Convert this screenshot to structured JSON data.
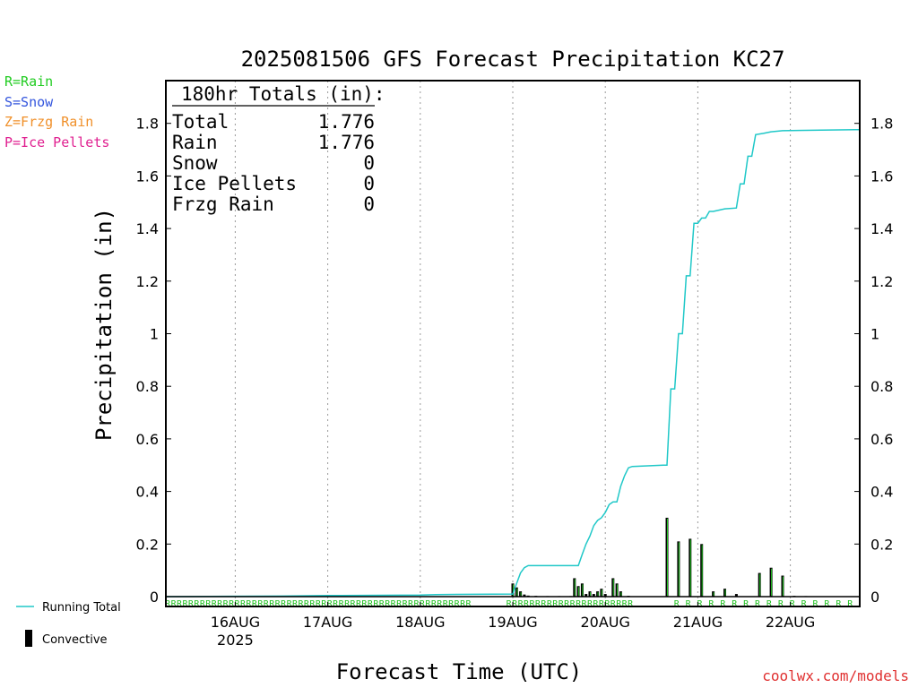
{
  "chart_data": {
    "type": "bar",
    "title": "2025081506 GFS Forecast Precipitation KC27",
    "xlabel": "Forecast Time (UTC)",
    "ylabel": "Precipitation (in)",
    "ylim": [
      0,
      1.95
    ],
    "yticks": [
      0,
      0.2,
      0.4,
      0.6,
      0.8,
      1,
      1.2,
      1.4,
      1.6,
      1.8
    ],
    "ytick_labels": [
      "0",
      "0.2",
      "0.4",
      "0.6",
      "0.8",
      "1",
      "1.2",
      "1.4",
      "1.6",
      "1.8"
    ],
    "xlim_hours": [
      0,
      180
    ],
    "day_hours": [
      18,
      42,
      66,
      90,
      114,
      138,
      162
    ],
    "x_tick_labels": [
      "16AUG",
      "17AUG",
      "18AUG",
      "19AUG",
      "20AUG",
      "21AUG",
      "22AUG"
    ],
    "x_tick_sublabel": "2025",
    "grid": true,
    "legend_position": "left",
    "type_legend": [
      {
        "text": "R=Rain",
        "color": "#22cc22"
      },
      {
        "text": "S=Snow",
        "color": "#3355dd"
      },
      {
        "text": "Z=Frzg Rain",
        "color": "#f0902a"
      },
      {
        "text": "P=Ice Pellets",
        "color": "#e02090"
      }
    ],
    "series_legend": [
      {
        "text": "Running Total",
        "kind": "line",
        "color": "#20c8c8"
      },
      {
        "text": "Convective",
        "kind": "bar",
        "color": "#000000"
      }
    ],
    "totals_box": {
      "header": "180hr Totals (in):",
      "rows": [
        {
          "label": "Total",
          "value": "1.776"
        },
        {
          "label": "Rain",
          "value": "1.776"
        },
        {
          "label": "Snow",
          "value": "0"
        },
        {
          "label": "Ice Pellets",
          "value": "0"
        },
        {
          "label": "Frzg Rain",
          "value": "0"
        }
      ]
    },
    "running_total": [
      [
        0,
        0
      ],
      [
        30,
        0.002
      ],
      [
        42,
        0.004
      ],
      [
        66,
        0.006
      ],
      [
        70,
        0.008
      ],
      [
        90,
        0.01
      ],
      [
        91,
        0.05
      ],
      [
        92,
        0.09
      ],
      [
        93,
        0.11
      ],
      [
        94,
        0.118
      ],
      [
        107,
        0.118
      ],
      [
        108,
        0.16
      ],
      [
        109,
        0.2
      ],
      [
        110,
        0.23
      ],
      [
        111,
        0.27
      ],
      [
        112,
        0.29
      ],
      [
        113,
        0.3
      ],
      [
        114,
        0.32
      ],
      [
        115,
        0.35
      ],
      [
        116,
        0.36
      ],
      [
        117,
        0.36
      ],
      [
        118,
        0.42
      ],
      [
        119,
        0.46
      ],
      [
        120,
        0.49
      ],
      [
        121,
        0.495
      ],
      [
        129,
        0.5
      ],
      [
        130,
        0.5
      ],
      [
        131,
        0.79
      ],
      [
        132,
        0.79
      ],
      [
        133,
        1.0
      ],
      [
        134,
        1.0
      ],
      [
        135,
        1.22
      ],
      [
        136,
        1.22
      ],
      [
        137,
        1.42
      ],
      [
        138,
        1.42
      ],
      [
        139,
        1.44
      ],
      [
        140,
        1.44
      ],
      [
        141,
        1.465
      ],
      [
        142,
        1.465
      ],
      [
        145,
        1.475
      ],
      [
        148,
        1.478
      ],
      [
        149,
        1.57
      ],
      [
        150,
        1.57
      ],
      [
        151,
        1.675
      ],
      [
        152,
        1.675
      ],
      [
        153,
        1.757
      ],
      [
        155,
        1.762
      ],
      [
        157,
        1.768
      ],
      [
        160,
        1.772
      ],
      [
        170,
        1.774
      ],
      [
        179,
        1.776
      ],
      [
        180,
        1.776
      ]
    ],
    "convective_bars": [
      [
        90,
        0.05
      ],
      [
        91,
        0.035
      ],
      [
        92,
        0.02
      ],
      [
        93,
        0.008
      ],
      [
        94,
        0.004
      ],
      [
        96,
        0.003
      ],
      [
        99,
        0.002
      ],
      [
        102,
        0.002
      ],
      [
        105,
        0.002
      ],
      [
        106,
        0.07
      ],
      [
        107,
        0.04
      ],
      [
        108,
        0.05
      ],
      [
        109,
        0.01
      ],
      [
        110,
        0.02
      ],
      [
        111,
        0.01
      ],
      [
        112,
        0.02
      ],
      [
        113,
        0.03
      ],
      [
        114,
        0.01
      ],
      [
        116,
        0.07
      ],
      [
        117,
        0.05
      ],
      [
        118,
        0.02
      ],
      [
        120,
        0.003
      ],
      [
        130,
        0.3
      ],
      [
        133,
        0.21
      ],
      [
        136,
        0.22
      ],
      [
        139,
        0.2
      ],
      [
        142,
        0.02
      ],
      [
        145,
        0.03
      ],
      [
        148,
        0.01
      ],
      [
        154,
        0.09
      ],
      [
        157,
        0.11
      ],
      [
        160,
        0.08
      ],
      [
        163,
        0.003
      ],
      [
        166,
        0.002
      ]
    ],
    "precip_type_markers": "R"
  },
  "credit": "coolwx.com/models"
}
